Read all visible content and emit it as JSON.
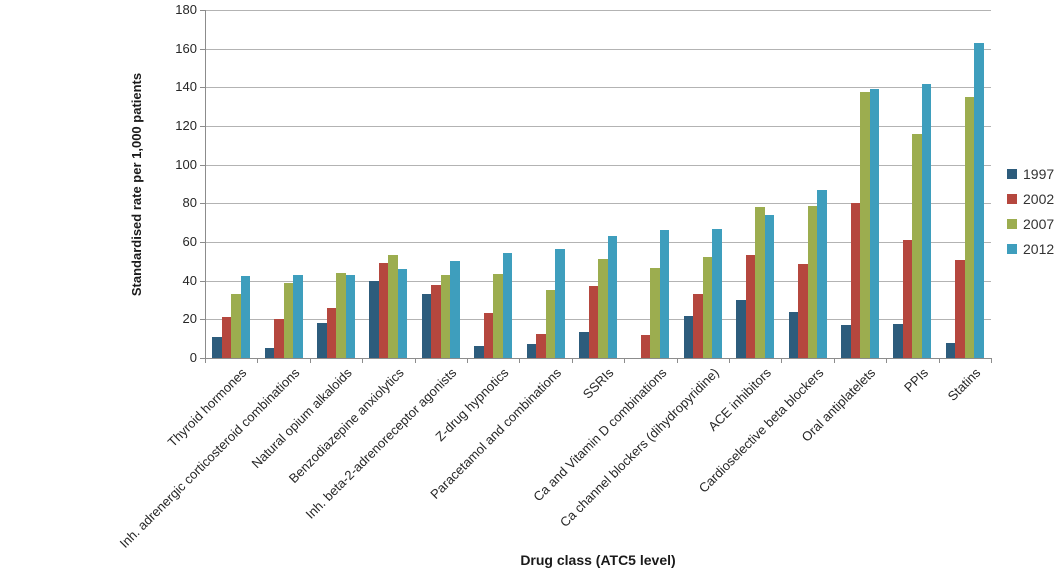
{
  "chart_data": {
    "type": "bar",
    "title": "",
    "xlabel": "Drug class (ATC5 level)",
    "ylabel": "Standardised rate per 1,000 patients",
    "ylim": [
      0,
      180
    ],
    "ytick_step": 20,
    "grid": true,
    "legend_position": "right",
    "categories": [
      "Thyroid hormones",
      "Inh. adrenergic corticosteroid combinations",
      "Natural opium alkaloids",
      "Benzodiazepine anxiolytics",
      "Inh. beta-2-adrenoreceptor agonists",
      "Z-drug hypnotics",
      "Paracetamol and combinations",
      "SSRIs",
      "Ca and Vitamin D combinations",
      "Ca channel blockers (dihydropyridine)",
      "ACE inhibitors",
      "Cardioselective beta blockers",
      "Oral antiplatelets",
      "PPIs",
      "Statins"
    ],
    "series": [
      {
        "name": "1997",
        "color": "#2d5c7c",
        "values": [
          11,
          5,
          18,
          40,
          33,
          6,
          7,
          13.5,
          0,
          21.5,
          30,
          24,
          17,
          17.5,
          8
        ]
      },
      {
        "name": "2002",
        "color": "#b5473e",
        "values": [
          21,
          20,
          26,
          49,
          37.5,
          23.5,
          12.5,
          37,
          12,
          33,
          53.5,
          48.5,
          80,
          61,
          50.5
        ]
      },
      {
        "name": "2007",
        "color": "#9cad4f",
        "values": [
          33,
          39,
          44,
          53.5,
          43,
          43.5,
          35,
          51,
          46.5,
          52,
          78,
          78.5,
          137.5,
          116,
          135
        ]
      },
      {
        "name": "2012",
        "color": "#3e9ebd",
        "values": [
          42.5,
          43,
          43,
          46,
          50,
          54.5,
          56.5,
          63,
          66,
          66.5,
          74,
          87,
          139,
          141.5,
          163
        ]
      }
    ]
  },
  "colors": {
    "gridline": "#b3b3b3",
    "axis": "#8c8c8c",
    "tick_text": "#262626",
    "title_text": "#1a1a1a"
  }
}
